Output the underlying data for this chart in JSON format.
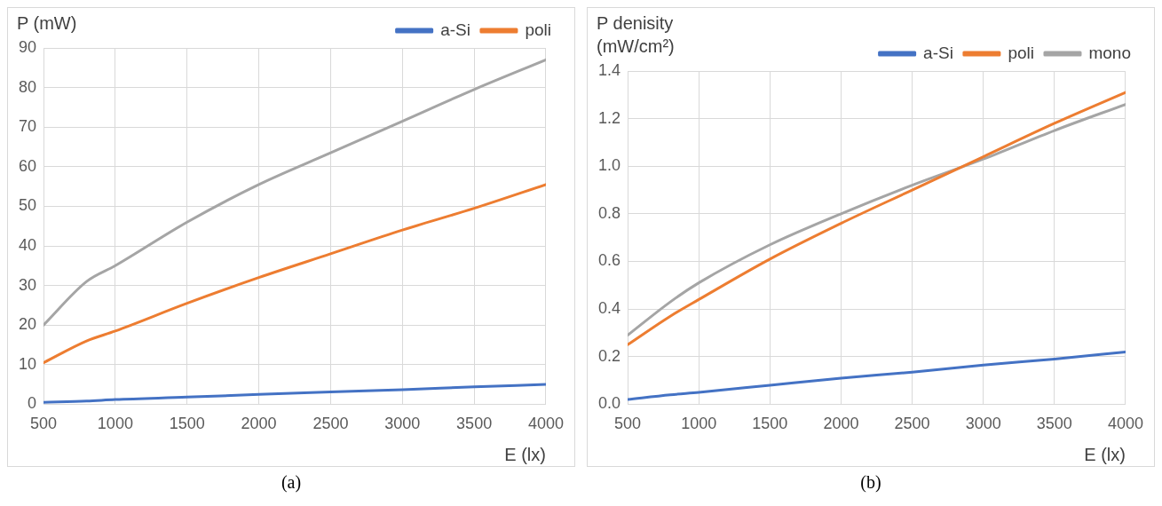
{
  "chart_data": [
    {
      "type": "line",
      "ylabel": "P (mW)",
      "xlabel": "E (lx)",
      "annotations": [
        "(a)"
      ],
      "x": [
        500,
        800,
        1000,
        1500,
        2000,
        2500,
        3000,
        3500,
        4000
      ],
      "xlim": [
        500,
        4000
      ],
      "xticks": [
        500,
        1000,
        1500,
        2000,
        2500,
        3000,
        3500,
        4000
      ],
      "ylim": [
        0,
        90
      ],
      "yticks": [
        0,
        10,
        20,
        30,
        40,
        50,
        60,
        70,
        80,
        90
      ],
      "grid": true,
      "legend": "top right",
      "marker": "none",
      "line_style": "solid",
      "series": [
        {
          "name": "a-Si",
          "color": "#4472c4",
          "values": [
            0.5,
            0.8,
            1.2,
            1.8,
            2.5,
            3.1,
            3.7,
            4.4,
            5
          ]
        },
        {
          "name": "poli",
          "color": "#ed7d31",
          "values": [
            10.5,
            16,
            18.5,
            25.5,
            32,
            38,
            44,
            49.5,
            55.5
          ]
        },
        {
          "color": "#a5a5a5",
          "values": [
            20,
            31,
            35,
            46,
            55.5,
            63.5,
            71.5,
            79.5,
            87
          ]
        }
      ]
    },
    {
      "type": "line",
      "ylabel": "P denisity (mW/cm²)",
      "xlabel": "E (lx)",
      "annotations": [
        "(b)"
      ],
      "x": [
        500,
        800,
        1000,
        1500,
        2000,
        2500,
        3000,
        3500,
        4000
      ],
      "xlim": [
        500,
        4000
      ],
      "xticks": [
        500,
        1000,
        1500,
        2000,
        2500,
        3000,
        3500,
        4000
      ],
      "ylim": [
        0,
        1.4
      ],
      "yticks": [
        {
          "value": 0,
          "label": "0.0"
        },
        {
          "value": 0.2,
          "label": "0.2"
        },
        {
          "value": 0.4,
          "label": "0.4"
        },
        {
          "value": 0.6,
          "label": "0.6"
        },
        {
          "value": 0.8,
          "label": "0.8"
        },
        {
          "value": 1,
          "label": "1.0"
        },
        {
          "value": 1.2,
          "label": "1.2"
        },
        {
          "value": 1.4,
          "label": "1.4"
        }
      ],
      "grid": true,
      "legend": "top right",
      "marker": "none",
      "line_style": "solid",
      "series": [
        {
          "name": "a-Si",
          "color": "#4472c4",
          "values": [
            0.02,
            0.04,
            0.05,
            0.08,
            0.11,
            0.135,
            0.165,
            0.19,
            0.22
          ]
        },
        {
          "name": "poli",
          "color": "#ed7d31",
          "values": [
            0.25,
            0.37,
            0.44,
            0.61,
            0.76,
            0.9,
            1.04,
            1.18,
            1.31
          ]
        },
        {
          "name": "mono",
          "color": "#a5a5a5",
          "values": [
            0.29,
            0.43,
            0.51,
            0.67,
            0.8,
            0.92,
            1.03,
            1.15,
            1.26
          ]
        }
      ]
    }
  ]
}
